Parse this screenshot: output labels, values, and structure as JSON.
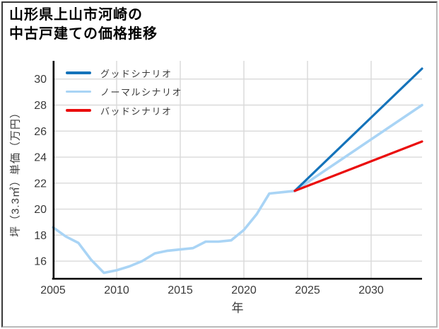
{
  "title": {
    "line1": "山形県上山市河崎の",
    "line2": "中古戸建ての価格推移"
  },
  "chart_data": {
    "type": "line",
    "title": "山形県上山市河崎の中古戸建ての価格推移",
    "xlabel": "年",
    "ylabel": "坪（3.3㎡）単価（万円）",
    "xlim": [
      2005,
      2034
    ],
    "ylim": [
      14.7,
      31.4
    ],
    "x_ticks": [
      2005,
      2010,
      2015,
      2020,
      2025,
      2030
    ],
    "y_ticks": [
      16,
      18,
      20,
      22,
      24,
      26,
      28,
      30
    ],
    "grid": true,
    "legend_position": "upper left",
    "series": [
      {
        "id": "good",
        "name": "グッドシナリオ",
        "color": "#1573ba",
        "points": [
          [
            2024,
            21.4
          ],
          [
            2034,
            30.8
          ]
        ]
      },
      {
        "id": "normal",
        "name": "ノーマルシナリオ",
        "color": "#a9d4f5",
        "points": [
          [
            2005,
            18.6
          ],
          [
            2006,
            17.9
          ],
          [
            2007,
            17.4
          ],
          [
            2008,
            16.1
          ],
          [
            2009,
            15.1
          ],
          [
            2010,
            15.3
          ],
          [
            2011,
            15.6
          ],
          [
            2012,
            16.0
          ],
          [
            2013,
            16.6
          ],
          [
            2014,
            16.8
          ],
          [
            2015,
            16.9
          ],
          [
            2016,
            17.0
          ],
          [
            2017,
            17.5
          ],
          [
            2018,
            17.5
          ],
          [
            2019,
            17.6
          ],
          [
            2020,
            18.4
          ],
          [
            2021,
            19.6
          ],
          [
            2022,
            21.2
          ],
          [
            2023,
            21.3
          ],
          [
            2024,
            21.4
          ],
          [
            2034,
            28.0
          ]
        ]
      },
      {
        "id": "bad",
        "name": "バッドシナリオ",
        "color": "#ea0d0d",
        "points": [
          [
            2024,
            21.4
          ],
          [
            2034,
            25.2
          ]
        ]
      }
    ],
    "colors": {
      "grid": "#d9d9d9",
      "axis": "#000000",
      "text": "#3a3a3a"
    }
  }
}
